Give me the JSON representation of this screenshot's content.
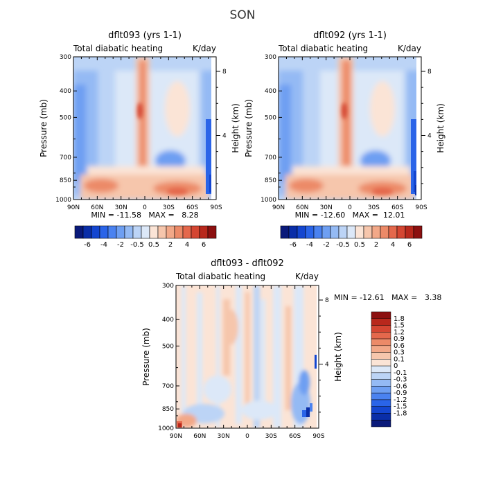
{
  "figure_title": "SON",
  "chart_data": [
    {
      "type": "heatmap",
      "title": "dflt093 (yrs 1-1)",
      "subtitle_left": "Total diabatic heating",
      "subtitle_right": "K/day",
      "ylabel_left": "Pressure (mb)",
      "ylabel_right": "Height (km)",
      "x_ticks": [
        "90N",
        "60N",
        "30N",
        "0",
        "30S",
        "60S",
        "90S"
      ],
      "x_range": [
        90,
        -90
      ],
      "pressure_ticks": [
        300,
        400,
        500,
        700,
        850,
        1000
      ],
      "pressure_range": [
        300,
        1000
      ],
      "height_ticks": [
        8,
        4
      ],
      "y_scale": "log",
      "min": -11.58,
      "max": 8.28,
      "stats": "MIN = -11.58   MAX =   8.28"
    },
    {
      "type": "heatmap",
      "title": "dflt092 (yrs 1-1)",
      "subtitle_left": "Total diabatic heating",
      "subtitle_right": "K/day",
      "ylabel_left": "Pressure (mb)",
      "ylabel_right": "Height (km)",
      "x_ticks": [
        "90N",
        "60N",
        "30N",
        "0",
        "30S",
        "60S",
        "90S"
      ],
      "x_range": [
        90,
        -90
      ],
      "pressure_ticks": [
        300,
        400,
        500,
        700,
        850,
        1000
      ],
      "pressure_range": [
        300,
        1000
      ],
      "height_ticks": [
        8,
        4
      ],
      "y_scale": "log",
      "min": -12.6,
      "max": 12.01,
      "stats": "MIN = -12.60   MAX =  12.01"
    },
    {
      "type": "heatmap",
      "title": "dflt093 - dflt092",
      "subtitle_left": "Total diabatic heating",
      "subtitle_right": "K/day",
      "ylabel_left": "Pressure (mb)",
      "ylabel_right": "Height (km)",
      "x_ticks": [
        "90N",
        "60N",
        "30N",
        "0",
        "30S",
        "60S",
        "90S"
      ],
      "x_range": [
        90,
        -90
      ],
      "pressure_ticks": [
        300,
        400,
        500,
        700,
        850,
        1000
      ],
      "pressure_range": [
        300,
        1000
      ],
      "height_ticks": [
        8,
        4
      ],
      "y_scale": "log",
      "min": -12.61,
      "max": 3.38,
      "stats": "MIN = -12.61   MAX =   3.38"
    }
  ],
  "colorbar_main": {
    "orientation": "horizontal",
    "colors": [
      "#0a1a7a",
      "#0a2ea8",
      "#1446d0",
      "#2a64e8",
      "#4a82f0",
      "#6e9ff2",
      "#94baf4",
      "#bcd4f6",
      "#dce8f8",
      "#fbe4d6",
      "#f6c6ac",
      "#f2a888",
      "#ec8a68",
      "#e4684c",
      "#d44632",
      "#b8281c",
      "#8c1010"
    ],
    "labels": [
      "-6",
      "-4",
      "-2",
      "-0.5",
      "0.5",
      "2",
      "4",
      "6"
    ]
  },
  "colorbar_diff": {
    "orientation": "vertical",
    "colors": [
      "#8c1010",
      "#b8281c",
      "#d44632",
      "#e4684c",
      "#ec8a68",
      "#f2a888",
      "#f6c6ac",
      "#fbe4d6",
      "#dce8f8",
      "#bcd4f6",
      "#94baf4",
      "#6e9ff2",
      "#4a82f0",
      "#2a64e8",
      "#1446d0",
      "#0a2ea8",
      "#0a1a7a"
    ],
    "labels": [
      "1.8",
      "1.5",
      "1.2",
      "0.9",
      "0.6",
      "0.3",
      "0.1",
      "0",
      "-0.1",
      "-0.3",
      "-0.6",
      "-0.9",
      "-1.2",
      "-1.5",
      "-1.8"
    ]
  }
}
